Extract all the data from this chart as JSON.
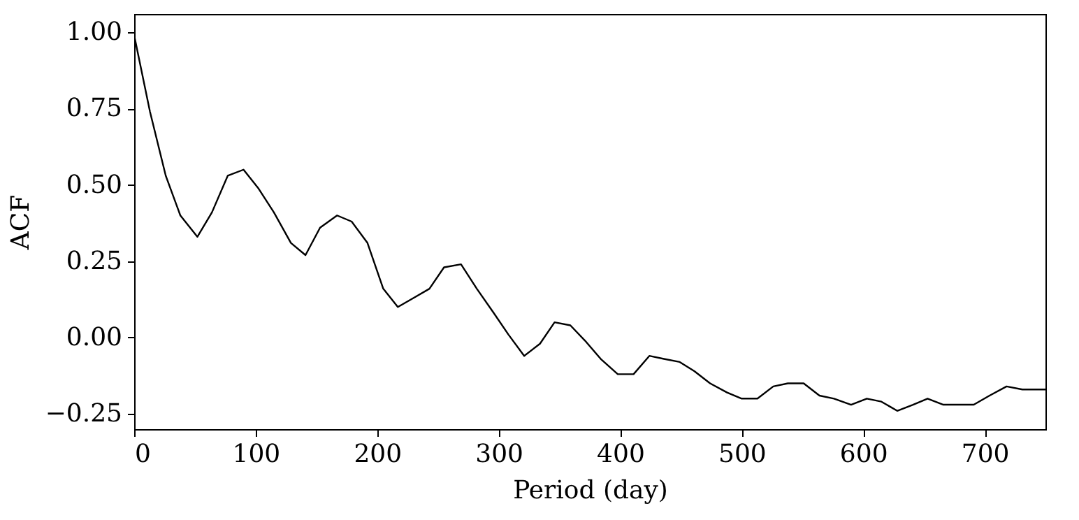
{
  "chart_data": {
    "type": "line",
    "xlabel": "Period (day)",
    "ylabel": "ACF",
    "x": [
      0,
      13,
      26,
      38,
      52,
      64,
      77,
      90,
      102,
      115,
      129,
      141,
      153,
      167,
      179,
      192,
      205,
      217,
      230,
      243,
      255,
      269,
      282,
      296,
      308,
      321,
      334,
      346,
      359,
      371,
      384,
      398,
      411,
      424,
      436,
      449,
      461,
      474,
      488,
      500,
      513,
      526,
      538,
      551,
      564,
      576,
      590,
      603,
      615,
      628,
      641,
      653,
      666,
      679,
      691,
      704,
      718,
      731,
      750
    ],
    "series": [
      {
        "color": "#000000",
        "values": [
          0.99,
          0.74,
          0.53,
          0.4,
          0.33,
          0.41,
          0.53,
          0.55,
          0.49,
          0.41,
          0.31,
          0.27,
          0.36,
          0.4,
          0.38,
          0.31,
          0.16,
          0.1,
          0.13,
          0.16,
          0.23,
          0.24,
          0.16,
          0.08,
          0.01,
          -0.06,
          -0.02,
          0.05,
          0.04,
          -0.01,
          -0.07,
          -0.12,
          -0.12,
          -0.06,
          -0.07,
          -0.08,
          -0.11,
          -0.15,
          -0.18,
          -0.2,
          -0.2,
          -0.16,
          -0.15,
          -0.15,
          -0.19,
          -0.2,
          -0.22,
          -0.2,
          -0.21,
          -0.24,
          -0.22,
          -0.2,
          -0.22,
          -0.22,
          -0.22,
          -0.19,
          -0.16,
          -0.17,
          -0.17
        ]
      }
    ],
    "xlim": [
      0,
      750
    ],
    "xticks": [
      0,
      100,
      200,
      300,
      400,
      500,
      600,
      700
    ],
    "ylim": [
      -0.3,
      1.06
    ],
    "yticks": [
      {
        "value": -0.25,
        "label": "−0.25"
      },
      {
        "value": 0,
        "label": "0.00"
      },
      {
        "value": 0.25,
        "label": "0.25"
      },
      {
        "value": 0.5,
        "label": "0.50"
      },
      {
        "value": 0.75,
        "label": "0.75"
      },
      {
        "value": 1.0,
        "label": "1.00"
      }
    ],
    "grid": false,
    "marker": "none",
    "line_style": "solid"
  }
}
